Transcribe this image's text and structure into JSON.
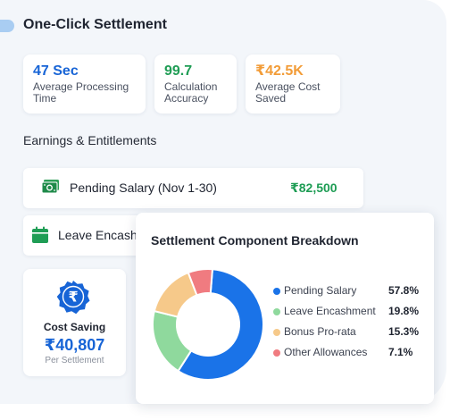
{
  "header": {
    "title": "One-Click Settlement"
  },
  "stats": [
    {
      "value": "47 Sec",
      "label_line1": "Average Processing",
      "label_line2": "Time",
      "color": "#1764d6"
    },
    {
      "value": "99.7",
      "label_line1": "Calculation",
      "label_line2": "Accuracy",
      "color": "#1f9d55"
    },
    {
      "value": "₹42.5K",
      "label_line1": "Average Cost",
      "label_line2": "Saved",
      "color": "#f29c38"
    }
  ],
  "section": {
    "title": "Earnings & Entitlements"
  },
  "rows": [
    {
      "label": "Pending Salary (Nov 1-30)",
      "value": "₹82,500",
      "icon": "banknote-icon"
    },
    {
      "label": "Leave Encash",
      "icon": "calendar-icon"
    }
  ],
  "saving": {
    "title": "Cost Saving",
    "value": "₹40,807",
    "sub": "Per Settlement",
    "icon": "rupee-badge-icon"
  },
  "breakdown": {
    "title": "Settlement Component Breakdown"
  },
  "chart_data": {
    "type": "pie",
    "title": "Settlement Component Breakdown",
    "categories": [
      "Pending Salary",
      "Leave Encashment",
      "Bonus Pro-rata",
      "Other Allowances"
    ],
    "values": [
      57.8,
      19.8,
      15.3,
      7.1
    ],
    "labels": [
      "57.8%",
      "19.8%",
      "15.3%",
      "7.1%"
    ],
    "colors": [
      "#1a73e8",
      "#8fd99d",
      "#f6c98a",
      "#f07b80"
    ],
    "legend": "right"
  }
}
